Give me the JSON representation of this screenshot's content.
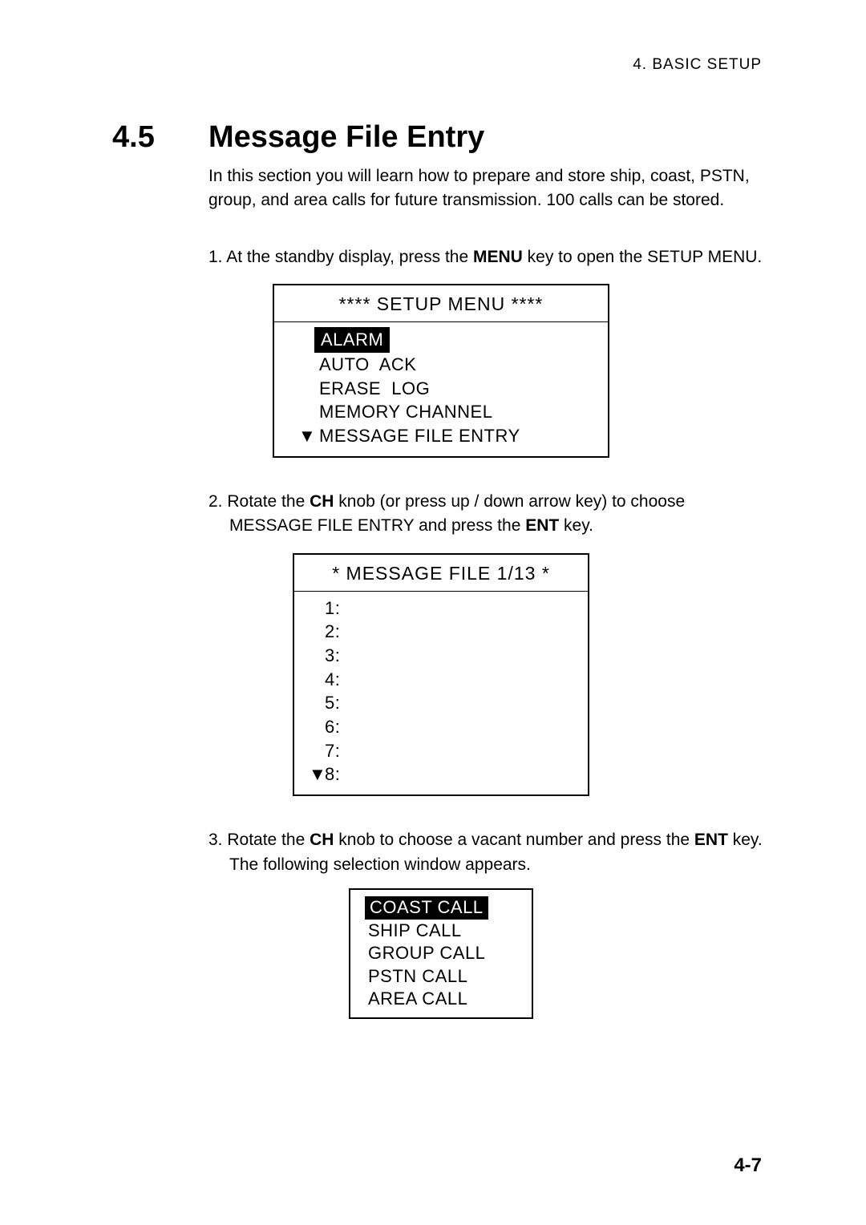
{
  "header": {
    "chapter": "4.  BASIC  SETUP"
  },
  "section": {
    "number": "4.5",
    "title": "Message File Entry",
    "intro": "In this section you will learn how to prepare and store ship, coast, PSTN, group, and area calls for future transmission. 100 calls can be stored."
  },
  "steps": {
    "s1_pre": "1. At the standby display, press the ",
    "s1_bold": "MENU",
    "s1_post": " key to open the SETUP MENU.",
    "s2_pre": "2. Rotate the ",
    "s2_b1": "CH",
    "s2_mid": " knob (or press up / down arrow key) to choose MESSAGE FILE ENTRY and press the ",
    "s2_b2": "ENT",
    "s2_post": " key.",
    "s3_pre": "3. Rotate the ",
    "s3_b1": "CH",
    "s3_mid": " knob to choose a vacant number and press the ",
    "s3_b2": "ENT",
    "s3_post": " key. The following selection window appears."
  },
  "screen1": {
    "title": "**** SETUP MENU ****",
    "items": [
      {
        "label": "ALARM",
        "selected": true
      },
      {
        "label": "AUTO  ACK",
        "selected": false
      },
      {
        "label": "ERASE  LOG",
        "selected": false
      },
      {
        "label": "MEMORY CHANNEL",
        "selected": false
      },
      {
        "label": "MESSAGE FILE ENTRY",
        "selected": false,
        "arrow": "▼"
      }
    ]
  },
  "screen2": {
    "title": "* MESSAGE FILE 1/13 *",
    "rows": [
      "1:",
      "2:",
      "3:",
      "4:",
      "5:",
      "6:",
      "7:"
    ],
    "last_arrow": "▼",
    "last_label": "8:"
  },
  "screen3": {
    "items": [
      {
        "label": "COAST CALL",
        "selected": true
      },
      {
        "label": "SHIP CALL",
        "selected": false
      },
      {
        "label": "GROUP CALL",
        "selected": false
      },
      {
        "label": "PSTN CALL",
        "selected": false
      },
      {
        "label": "AREA CALL",
        "selected": false
      }
    ]
  },
  "page": "4-7"
}
